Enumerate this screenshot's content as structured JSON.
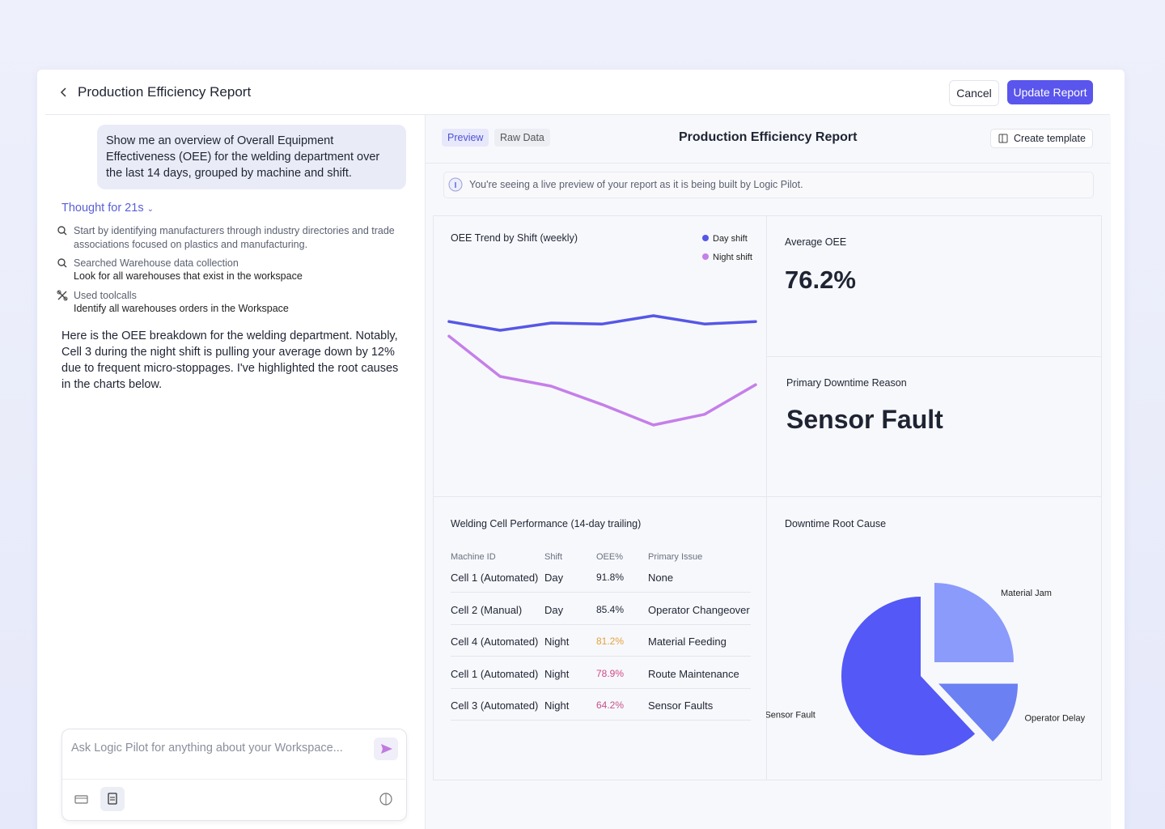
{
  "header": {
    "title": "Production Efficiency Report",
    "cancel": "Cancel",
    "submit": "Update Report"
  },
  "chat": {
    "prompt": "Show me an overview of Overall Equipment Effectiveness (OEE) for the welding department over the last 14 days, grouped by machine and shift.",
    "thought": "Thought for 21s",
    "steps": [
      {
        "title": "Start by identifying manufacturers through industry directories and trade associations focused on plastics and manufacturing."
      },
      {
        "title": "Searched Warehouse data collection",
        "detail": "Look for all warehouses that exist in the workspace"
      },
      {
        "title": "Used toolcalls",
        "detail": "Identify all warehouses orders in the Workspace"
      }
    ],
    "reply": "Here is the OEE breakdown for the welding department. Notably, Cell 3 during the night shift is pulling your average down by 12% due to frequent micro-stoppages. I've highlighted the root causes in the charts below.",
    "input_placeholder": "Ask Logic Pilot for anything about your Workspace..."
  },
  "report": {
    "tabs": [
      "Preview",
      "Raw Data"
    ],
    "title": "Production Efficiency Report",
    "template_button": "Create template",
    "notice": "You're seeing a live preview of your report as it is being built by Logic Pilot.",
    "kpis": [
      {
        "label": "Average OEE",
        "value": "76.2%"
      },
      {
        "label": "Primary Downtime Reason",
        "value": "Sensor Fault"
      }
    ],
    "table": {
      "title": "Welding Cell Performance (14-day trailing)",
      "columns": [
        "Machine ID",
        "Shift",
        "OEE%",
        "Primary Issue"
      ],
      "rows": [
        [
          "Cell 1 (Automated)",
          "Day",
          "91.8%",
          "None"
        ],
        [
          "Cell 2 (Manual)",
          "Day",
          "85.4%",
          "Operator Changeover"
        ],
        [
          "Cell 4 (Automated)",
          "Night",
          "81.2%",
          "Material Feeding"
        ],
        [
          "Cell 1 (Automated)",
          "Night",
          "78.9%",
          "Route Maintenance"
        ],
        [
          "Cell 3 (Automated)",
          "Night",
          "64.2%",
          "Sensor Faults"
        ]
      ],
      "oee_colors": [
        "#1f2433",
        "#1f2433",
        "#e3a13a",
        "#d0488a",
        "#c8508a"
      ]
    }
  },
  "chart_data": [
    {
      "type": "line",
      "title": "OEE Trend by Shift (weekly)",
      "categories": [
        null,
        null,
        null,
        null,
        null,
        null,
        null
      ],
      "ylim": [
        50,
        100
      ],
      "series": [
        {
          "name": "Day shift",
          "color": "#5657e6",
          "values": [
            83.8,
            82,
            83.5,
            83.3,
            85,
            83.3,
            83.8
          ]
        },
        {
          "name": "Night shift",
          "color": "#c57fe9",
          "values": [
            80.8,
            72.5,
            70.5,
            66.7,
            62.5,
            64.7,
            70.8
          ]
        }
      ]
    },
    {
      "type": "pie",
      "title": "Downtime Root Cause",
      "categories": [
        "Material Jam",
        "Operator Delay",
        "Sensor Fault"
      ],
      "values": [
        25,
        13,
        62
      ],
      "colors": [
        "#8a9bfb",
        "#6b80f3",
        "#5358f6"
      ]
    }
  ]
}
